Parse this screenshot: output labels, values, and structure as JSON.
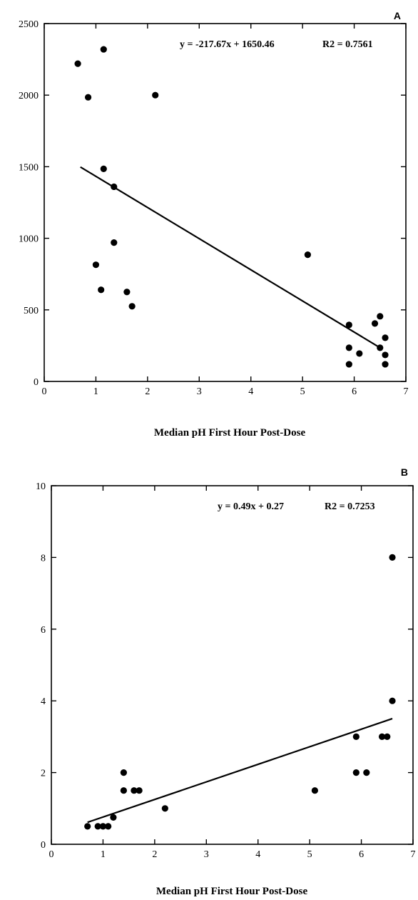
{
  "chart_data": [
    {
      "type": "scatter",
      "panel_label": "A",
      "xlabel": "Median pH First Hour Post-Dose",
      "ylabel": "",
      "xlim": [
        0,
        7
      ],
      "ylim": [
        0,
        2500
      ],
      "x_ticks": [
        "0",
        "1",
        "2",
        "3",
        "4",
        "5",
        "6",
        "7"
      ],
      "y_ticks": [
        "0",
        "500",
        "1000",
        "1500",
        "2000",
        "2500"
      ],
      "equation": "y = -217.67x + 1650.46",
      "r2": "R2 = 0.7561",
      "trendline": {
        "slope": -217.67,
        "intercept": 1650.46,
        "x_range": [
          0.7,
          6.5
        ]
      },
      "series": [
        {
          "points": [
            [
              0.65,
              2220
            ],
            [
              1.15,
              2320
            ],
            [
              0.85,
              1985
            ],
            [
              2.15,
              2000
            ],
            [
              1.15,
              1485
            ],
            [
              1.35,
              1360
            ],
            [
              1.35,
              970
            ],
            [
              1.0,
              815
            ],
            [
              1.1,
              640
            ],
            [
              1.6,
              625
            ],
            [
              1.7,
              525
            ],
            [
              5.1,
              885
            ],
            [
              5.9,
              395
            ],
            [
              5.9,
              235
            ],
            [
              5.9,
              120
            ],
            [
              6.1,
              195
            ],
            [
              6.4,
              405
            ],
            [
              6.5,
              455
            ],
            [
              6.5,
              235
            ],
            [
              6.6,
              305
            ],
            [
              6.6,
              185
            ],
            [
              6.6,
              120
            ]
          ]
        }
      ]
    },
    {
      "type": "scatter",
      "panel_label": "B",
      "xlabel": "Median pH First Hour Post-Dose",
      "ylabel": "",
      "xlim": [
        0,
        7
      ],
      "ylim": [
        0,
        10
      ],
      "x_ticks": [
        "0",
        "1",
        "2",
        "3",
        "4",
        "5",
        "6",
        "7"
      ],
      "y_ticks": [
        "0",
        "2",
        "4",
        "6",
        "8",
        "10"
      ],
      "equation": "y = 0.49x + 0.27",
      "r2": "R2 = 0.7253",
      "trendline": {
        "slope": 0.49,
        "intercept": 0.27,
        "x_range": [
          0.7,
          6.6
        ]
      },
      "series": [
        {
          "points": [
            [
              0.7,
              0.5
            ],
            [
              0.9,
              0.5
            ],
            [
              1.0,
              0.5
            ],
            [
              1.1,
              0.5
            ],
            [
              1.2,
              0.75
            ],
            [
              1.4,
              2.0
            ],
            [
              1.4,
              1.5
            ],
            [
              1.6,
              1.5
            ],
            [
              1.7,
              1.5
            ],
            [
              2.2,
              1.0
            ],
            [
              5.1,
              1.5
            ],
            [
              5.9,
              3.0
            ],
            [
              5.9,
              2.0
            ],
            [
              6.1,
              2.0
            ],
            [
              6.4,
              3.0
            ],
            [
              6.5,
              3.0
            ],
            [
              6.6,
              8.0
            ],
            [
              6.6,
              4.0
            ]
          ]
        }
      ]
    }
  ]
}
